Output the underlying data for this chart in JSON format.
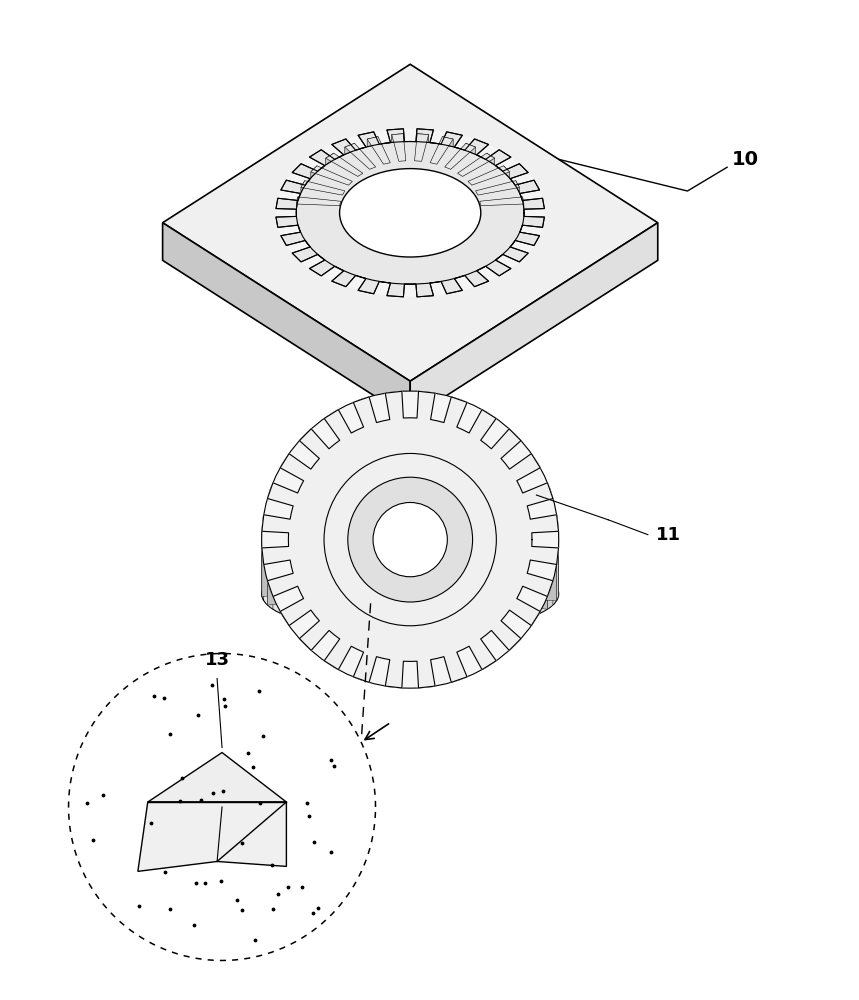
{
  "background_color": "#ffffff",
  "label_10": "10",
  "label_11": "11",
  "label_13": "13",
  "fig_width": 8.59,
  "fig_height": 10.0,
  "dpi": 100
}
